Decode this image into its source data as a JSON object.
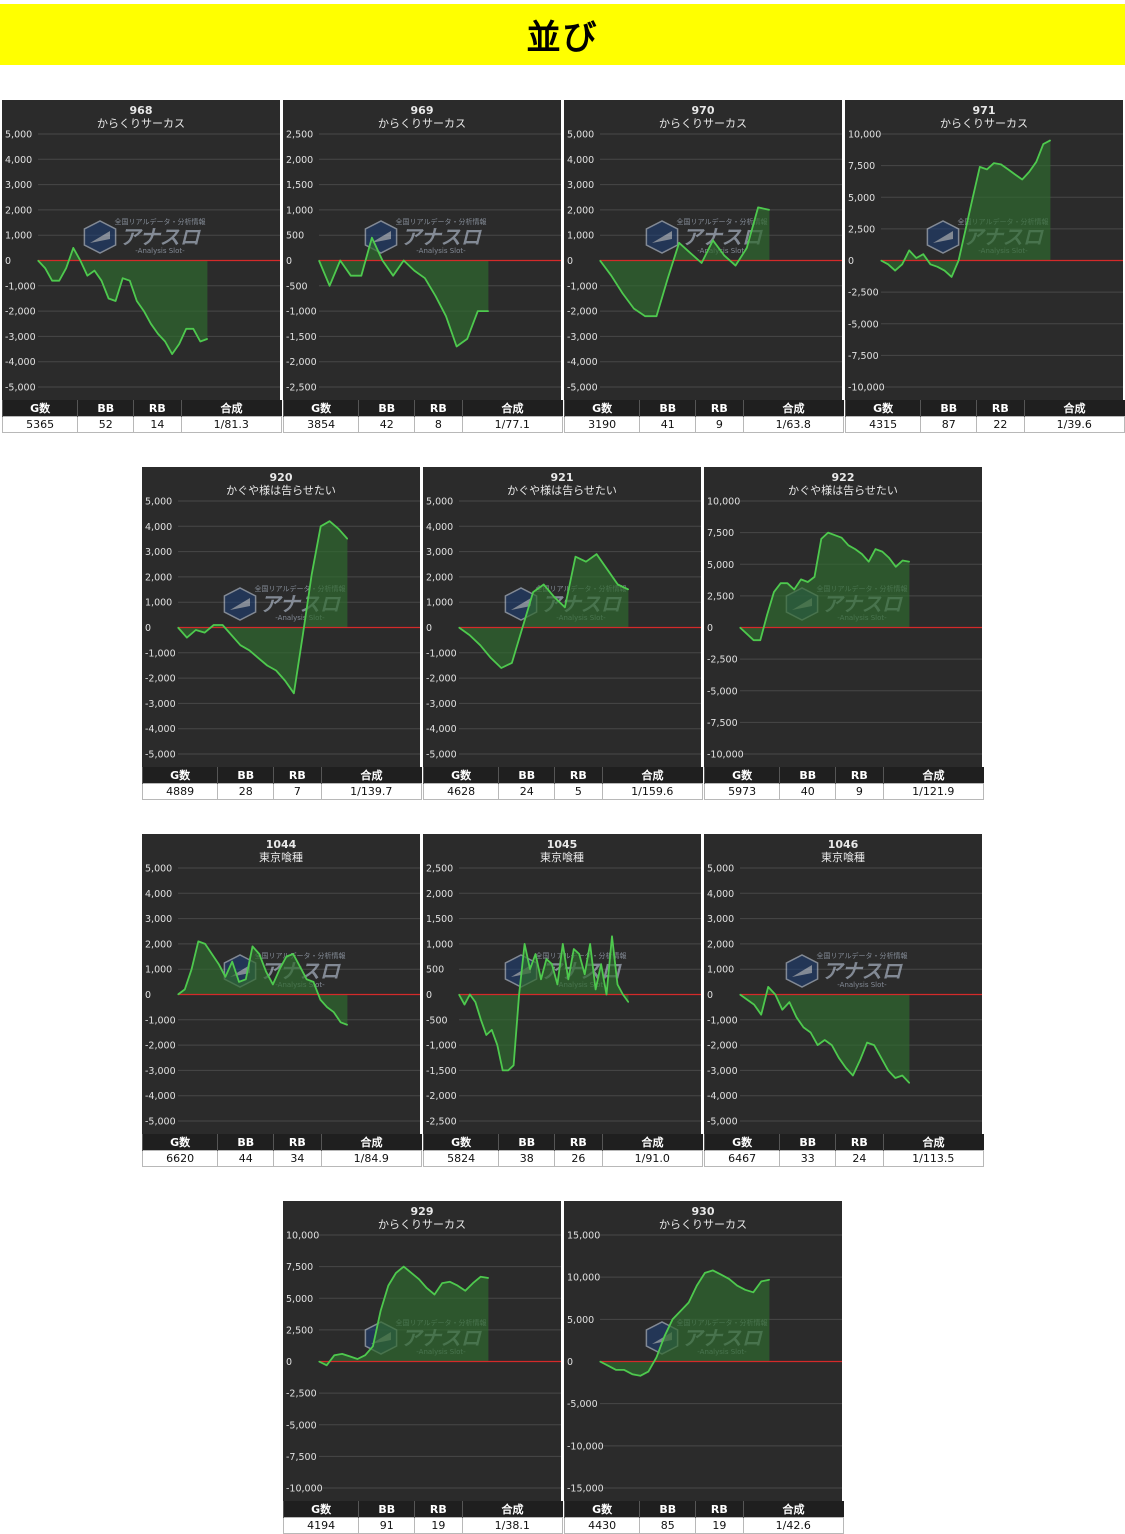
{
  "page": {
    "title": "並び"
  },
  "table_headers": [
    "G数",
    "BB",
    "RB",
    "合成"
  ],
  "colors": {
    "line": "#4ec94e",
    "zero_line": "#d42a2a",
    "fill": "#2f6a2f",
    "banner": "#ffff00"
  },
  "watermark": {
    "brand": "アナスロ",
    "tag": "全国リアルデータ・分析情報",
    "sub": "-Analysis Slot-"
  },
  "chart_data": [
    {
      "type": "area",
      "machine_no": "968",
      "machine": "からくりサーカス",
      "yticks": [
        "5,000",
        "4,000",
        "3,000",
        "2,000",
        "1,000",
        "0",
        "-1,000",
        "-2,000",
        "-3,000",
        "-4,000",
        "-5,000"
      ],
      "ylim": [
        -5000,
        5000
      ],
      "values": [
        0,
        -300,
        -800,
        -800,
        -300,
        500,
        0,
        -600,
        -400,
        -800,
        -1500,
        -1600,
        -700,
        -800,
        -1600,
        -2000,
        -2500,
        -2900,
        -3200,
        -3700,
        -3300,
        -2700,
        -2700,
        -3200,
        -3100
      ],
      "stats": {
        "games": "5365",
        "bb": "52",
        "rb": "14",
        "combined": "1/81.3"
      }
    },
    {
      "type": "area",
      "machine_no": "969",
      "machine": "からくりサーカス",
      "yticks": [
        "2,500",
        "2,000",
        "1,500",
        "1,000",
        "500",
        "0",
        "-500",
        "-1,000",
        "-1,500",
        "-2,000",
        "-2,500"
      ],
      "ylim": [
        -2500,
        2500
      ],
      "values": [
        0,
        -500,
        0,
        -300,
        -300,
        450,
        0,
        -300,
        0,
        -200,
        -350,
        -700,
        -1100,
        -1700,
        -1550,
        -1000,
        -1000
      ],
      "stats": {
        "games": "3854",
        "bb": "42",
        "rb": "8",
        "combined": "1/77.1"
      }
    },
    {
      "type": "area",
      "machine_no": "970",
      "machine": "からくりサーカス",
      "yticks": [
        "5,000",
        "4,000",
        "3,000",
        "2,000",
        "1,000",
        "0",
        "-1,000",
        "-2,000",
        "-3,000",
        "-4,000",
        "-5,000"
      ],
      "ylim": [
        -5000,
        5000
      ],
      "values": [
        0,
        -600,
        -1300,
        -1900,
        -2200,
        -2200,
        -700,
        700,
        300,
        -100,
        800,
        200,
        -200,
        500,
        2100,
        2000
      ],
      "stats": {
        "games": "3190",
        "bb": "41",
        "rb": "9",
        "combined": "1/63.8"
      }
    },
    {
      "type": "area",
      "machine_no": "971",
      "machine": "からくりサーカス",
      "yticks": [
        "10,000",
        "7,500",
        "5,000",
        "2,500",
        "0",
        "-2,500",
        "-5,000",
        "-7,500",
        "-10,000"
      ],
      "ylim": [
        -10000,
        10000
      ],
      "values": [
        0,
        -300,
        -800,
        -300,
        800,
        200,
        500,
        -300,
        -500,
        -800,
        -1300,
        0,
        2500,
        5000,
        7400,
        7200,
        7700,
        7600,
        7200,
        6800,
        6400,
        7000,
        7800,
        9200,
        9500
      ],
      "stats": {
        "games": "4315",
        "bb": "87",
        "rb": "22",
        "combined": "1/39.6"
      }
    },
    {
      "type": "area",
      "machine_no": "920",
      "machine": "かぐや様は告らせたい",
      "yticks": [
        "5,000",
        "4,000",
        "3,000",
        "2,000",
        "1,000",
        "0",
        "-1,000",
        "-2,000",
        "-3,000",
        "-4,000",
        "-5,000"
      ],
      "ylim": [
        -5000,
        5000
      ],
      "values": [
        0,
        -400,
        -100,
        -200,
        100,
        100,
        -300,
        -700,
        -900,
        -1200,
        -1500,
        -1700,
        -2100,
        -2600,
        -300,
        2100,
        4000,
        4200,
        3900,
        3500
      ],
      "stats": {
        "games": "4889",
        "bb": "28",
        "rb": "7",
        "combined": "1/139.7"
      }
    },
    {
      "type": "area",
      "machine_no": "921",
      "machine": "かぐや様は告らせたい",
      "yticks": [
        "5,000",
        "4,000",
        "3,000",
        "2,000",
        "1,000",
        "0",
        "-1,000",
        "-2,000",
        "-3,000",
        "-4,000",
        "-5,000"
      ],
      "ylim": [
        -5000,
        5000
      ],
      "values": [
        0,
        -300,
        -700,
        -1200,
        -1600,
        -1400,
        0,
        1400,
        1700,
        1200,
        800,
        2800,
        2600,
        2900,
        2300,
        1700,
        1500
      ],
      "stats": {
        "games": "4628",
        "bb": "24",
        "rb": "5",
        "combined": "1/159.6"
      }
    },
    {
      "type": "area",
      "machine_no": "922",
      "machine": "かぐや様は告らせたい",
      "yticks": [
        "10,000",
        "7,500",
        "5,000",
        "2,500",
        "0",
        "-2,500",
        "-5,000",
        "-7,500",
        "-10,000"
      ],
      "ylim": [
        -10000,
        10000
      ],
      "values": [
        0,
        -500,
        -1000,
        -1000,
        1000,
        2800,
        3500,
        3500,
        3000,
        3800,
        3600,
        4000,
        7000,
        7500,
        7300,
        7100,
        6500,
        6200,
        5800,
        5200,
        6200,
        6000,
        5500,
        4800,
        5300,
        5200
      ],
      "stats": {
        "games": "5973",
        "bb": "40",
        "rb": "9",
        "combined": "1/121.9"
      }
    },
    {
      "type": "area",
      "machine_no": "1044",
      "machine": "東京喰種",
      "yticks": [
        "5,000",
        "4,000",
        "3,000",
        "2,000",
        "1,000",
        "0",
        "-1,000",
        "-2,000",
        "-3,000",
        "-4,000",
        "-5,000"
      ],
      "ylim": [
        -5000,
        5000
      ],
      "values": [
        0,
        200,
        1000,
        2100,
        2000,
        1600,
        1200,
        700,
        1300,
        500,
        600,
        1900,
        1600,
        900,
        400,
        1000,
        1500,
        1600,
        1100,
        600,
        500,
        -200,
        -500,
        -700,
        -1100,
        -1200
      ],
      "stats": {
        "games": "6620",
        "bb": "44",
        "rb": "34",
        "combined": "1/84.9"
      }
    },
    {
      "type": "area",
      "machine_no": "1045",
      "machine": "東京喰種",
      "yticks": [
        "2,500",
        "2,000",
        "1,500",
        "1,000",
        "500",
        "0",
        "-500",
        "-1,000",
        "-1,500",
        "-2,000",
        "-2,500"
      ],
      "ylim": [
        -2500,
        2500
      ],
      "values": [
        0,
        -200,
        0,
        -150,
        -500,
        -800,
        -700,
        -1000,
        -1500,
        -1500,
        -1400,
        0,
        1000,
        500,
        800,
        300,
        700,
        600,
        200,
        1000,
        300,
        900,
        800,
        400,
        1000,
        100,
        600,
        0,
        1150,
        200,
        0,
        -150
      ],
      "stats": {
        "games": "5824",
        "bb": "38",
        "rb": "26",
        "combined": "1/91.0"
      }
    },
    {
      "type": "area",
      "machine_no": "1046",
      "machine": "東京喰種",
      "yticks": [
        "5,000",
        "4,000",
        "3,000",
        "2,000",
        "1,000",
        "0",
        "-1,000",
        "-2,000",
        "-3,000",
        "-4,000",
        "-5,000"
      ],
      "ylim": [
        -5000,
        5000
      ],
      "values": [
        0,
        -200,
        -400,
        -800,
        300,
        0,
        -600,
        -300,
        -900,
        -1300,
        -1500,
        -2000,
        -1800,
        -2000,
        -2500,
        -2900,
        -3200,
        -2600,
        -1900,
        -2000,
        -2500,
        -3000,
        -3300,
        -3200,
        -3500
      ],
      "stats": {
        "games": "6467",
        "bb": "33",
        "rb": "24",
        "combined": "1/113.5"
      }
    },
    {
      "type": "area",
      "machine_no": "929",
      "machine": "からくりサーカス",
      "yticks": [
        "10,000",
        "7,500",
        "5,000",
        "2,500",
        "0",
        "-2,500",
        "-5,000",
        "-7,500",
        "-10,000"
      ],
      "ylim": [
        -10000,
        10000
      ],
      "values": [
        0,
        -300,
        500,
        600,
        400,
        200,
        500,
        1200,
        4000,
        6000,
        7000,
        7500,
        7000,
        6500,
        5800,
        5300,
        6200,
        6300,
        6000,
        5600,
        6200,
        6700,
        6600
      ],
      "stats": {
        "games": "4194",
        "bb": "91",
        "rb": "19",
        "combined": "1/38.1"
      }
    },
    {
      "type": "area",
      "machine_no": "930",
      "machine": "からくりサーカス",
      "yticks": [
        "15,000",
        "10,000",
        "5,000",
        "0",
        "-5,000",
        "-10,000",
        "-15,000"
      ],
      "ylim": [
        -15000,
        15000
      ],
      "values": [
        0,
        -500,
        -1000,
        -1000,
        -1500,
        -1700,
        -1200,
        500,
        3000,
        5000,
        6000,
        7000,
        9000,
        10500,
        10800,
        10300,
        9800,
        9000,
        8500,
        8200,
        9500,
        9700
      ],
      "stats": {
        "games": "4430",
        "bb": "85",
        "rb": "19",
        "combined": "1/42.6"
      }
    }
  ]
}
